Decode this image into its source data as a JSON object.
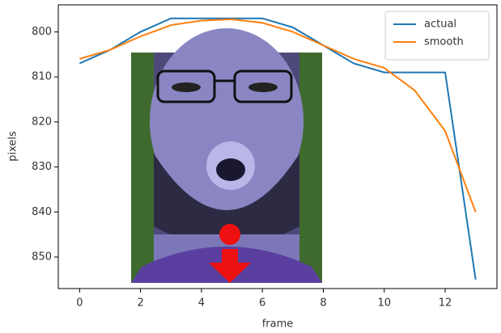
{
  "chart_data": {
    "type": "line",
    "x_label": "frame",
    "y_label": "pixels",
    "x": [
      0,
      1,
      2,
      3,
      4,
      5,
      6,
      7,
      8,
      9,
      10,
      11,
      12,
      13
    ],
    "series": [
      {
        "name": "actual",
        "color": "#1f77b4",
        "values": [
          807,
          804,
          800,
          797,
          797,
          797,
          797,
          799,
          803,
          807,
          809,
          809,
          809,
          855
        ]
      },
      {
        "name": "smooth",
        "color": "#ff7f0e",
        "values": [
          806,
          804,
          801,
          798.5,
          797.5,
          797.2,
          798,
          800,
          803,
          806,
          808,
          813,
          822,
          840
        ]
      }
    ],
    "xlim": [
      -0.7,
      13.7
    ],
    "xticks": [
      0,
      2,
      4,
      6,
      8,
      10,
      12
    ],
    "ylim": [
      857,
      794
    ],
    "yticks": [
      800,
      810,
      820,
      830,
      840,
      850
    ],
    "legend": "upper right"
  }
}
